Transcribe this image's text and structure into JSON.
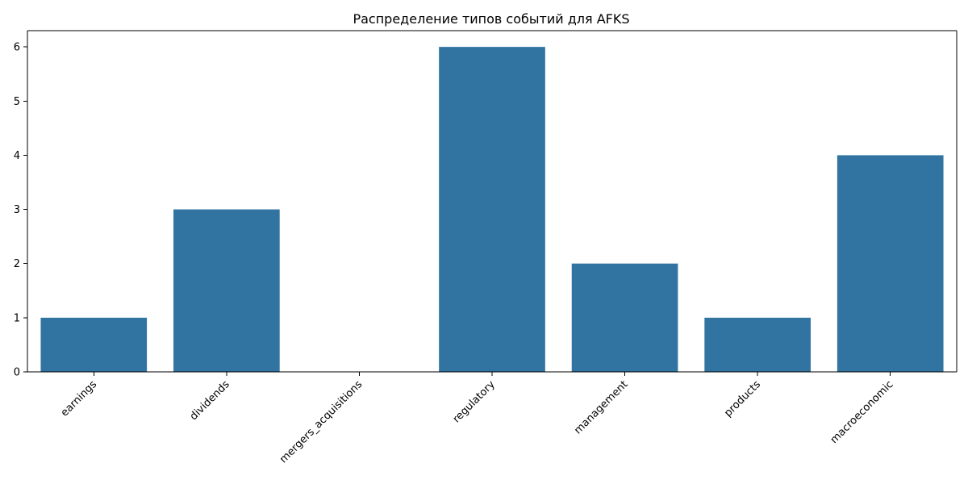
{
  "chart_data": {
    "type": "bar",
    "title": "Распределение типов событий для AFKS",
    "xlabel": "",
    "ylabel": "",
    "categories": [
      "earnings",
      "dividends",
      "mergers_acquisitions",
      "regulatory",
      "management",
      "products",
      "macroeconomic"
    ],
    "values": [
      1,
      3,
      0,
      6,
      2,
      1,
      4
    ],
    "ylim": [
      0,
      6.3
    ],
    "yticks": [
      0,
      1,
      2,
      3,
      4,
      5,
      6
    ],
    "xtick_rotation_deg": 45,
    "bar_color": "#3274a1",
    "grid": false,
    "legend": "none"
  }
}
